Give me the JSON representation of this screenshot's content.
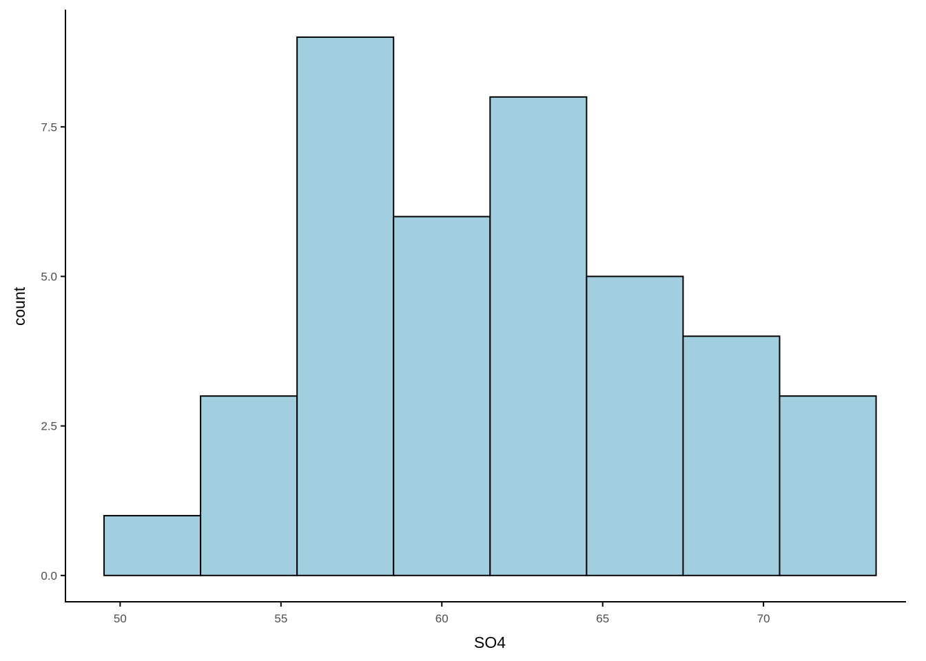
{
  "chart_data": {
    "type": "histogram",
    "x_label": "SO4",
    "y_label": "count",
    "bins": [
      49.5,
      52.5,
      55.5,
      58.5,
      61.5,
      64.5,
      67.5,
      70.5,
      73.5
    ],
    "values": [
      1,
      3,
      9,
      6,
      8,
      5,
      4,
      3
    ],
    "color": "#a2cfe0",
    "xlim": [
      48.3,
      74.43
    ],
    "ylim": [
      -0.44,
      9.46
    ],
    "xticks": [
      50,
      55,
      60,
      65,
      70
    ],
    "yticks": [
      {
        "value": 0,
        "label": "0.0"
      },
      {
        "value": 2.5,
        "label": "2.5"
      },
      {
        "value": 5,
        "label": "5.0"
      },
      {
        "value": 7.5,
        "label": "7.5"
      }
    ],
    "grid": false
  }
}
